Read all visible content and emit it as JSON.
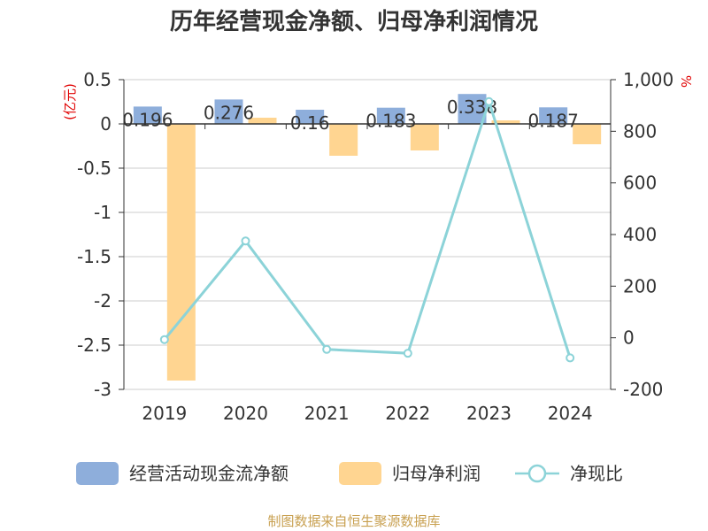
{
  "title": "历年经营现金净额、归母净利润情况",
  "source": "制图数据来自恒生聚源数据库",
  "left_axis_unit": "(亿元)",
  "right_axis_unit": "%",
  "chart_data": {
    "type": "bar",
    "categories": [
      "2019",
      "2020",
      "2021",
      "2022",
      "2023",
      "2024"
    ],
    "series": [
      {
        "name": "经营活动现金流净额",
        "type": "bar",
        "axis": "left",
        "color": "#8eaedb",
        "values": [
          0.196,
          0.276,
          0.16,
          0.183,
          0.338,
          0.187
        ]
      },
      {
        "name": "归母净利润",
        "type": "bar",
        "axis": "left",
        "color": "#ffd591",
        "values": [
          -2.9,
          0.07,
          -0.36,
          -0.3,
          0.04,
          -0.23
        ]
      },
      {
        "name": "净现比",
        "type": "line",
        "axis": "right",
        "color": "#8cd3d8",
        "values": [
          -7,
          375,
          -45,
          -60,
          915,
          -78
        ]
      }
    ],
    "left_axis": {
      "ylim": [
        -3,
        0.5
      ],
      "ticks": [
        "0.5",
        "0",
        "-0.5",
        "-1",
        "-1.5",
        "-2",
        "-2.5",
        "-3"
      ],
      "tick_values": [
        0.5,
        0,
        -0.5,
        -1,
        -1.5,
        -2,
        -2.5,
        -3
      ]
    },
    "right_axis": {
      "ylim": [
        -200,
        1000
      ],
      "ticks": [
        "1,000",
        "800",
        "600",
        "400",
        "200",
        "0",
        "-200"
      ],
      "tick_values": [
        1000,
        800,
        600,
        400,
        200,
        0,
        -200
      ]
    },
    "data_labels": [
      "0.196",
      "0.276",
      "0.16",
      "0.183",
      "0.338",
      "0.187"
    ],
    "grid": true,
    "legend_position": "bottom"
  }
}
